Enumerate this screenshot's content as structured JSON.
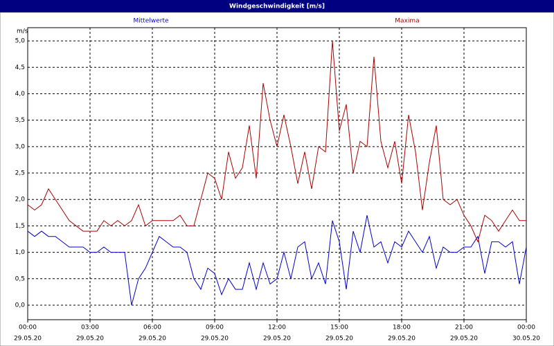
{
  "chart_data": {
    "type": "line",
    "title": "Windgeschwindigkeit [m/s]",
    "y_unit": "m/s",
    "x": [
      0,
      20,
      40,
      60,
      80,
      100,
      120,
      140,
      160,
      180,
      200,
      220,
      240,
      260,
      280,
      300,
      320,
      340,
      360,
      380,
      400,
      420,
      440,
      460,
      480,
      500,
      520,
      540,
      560,
      580,
      600,
      620,
      640,
      660,
      680,
      700,
      720,
      740,
      760,
      780,
      800,
      820,
      840,
      860,
      880,
      900,
      920,
      940,
      960,
      980,
      1000,
      1020,
      1040,
      1060,
      1080,
      1100,
      1120,
      1140,
      1160,
      1180,
      1200,
      1220,
      1240,
      1260,
      1280,
      1300,
      1320,
      1340,
      1360,
      1380,
      1400,
      1420,
      1440
    ],
    "series": [
      {
        "name": "Mittelwerte",
        "color": "#0000cc",
        "values": [
          1.4,
          1.3,
          1.4,
          1.3,
          1.3,
          1.2,
          1.1,
          1.1,
          1.1,
          1.0,
          1.0,
          1.1,
          1.0,
          1.0,
          1.0,
          0.0,
          0.5,
          0.7,
          1.0,
          1.3,
          1.2,
          1.1,
          1.1,
          1.0,
          0.5,
          0.3,
          0.7,
          0.6,
          0.2,
          0.5,
          0.3,
          0.3,
          0.8,
          0.3,
          0.8,
          0.4,
          0.5,
          1.0,
          0.5,
          1.1,
          1.2,
          0.5,
          0.8,
          0.4,
          1.6,
          1.2,
          0.3,
          1.4,
          1.0,
          1.7,
          1.1,
          1.2,
          0.8,
          1.2,
          1.1,
          1.4,
          1.2,
          1.0,
          1.3,
          0.7,
          1.1,
          1.0,
          1.0,
          1.1,
          1.1,
          1.3,
          0.6,
          1.2,
          1.2,
          1.1,
          1.2,
          0.4,
          1.1
        ]
      },
      {
        "name": "Maxima",
        "color": "#aa0000",
        "values": [
          1.9,
          1.8,
          1.9,
          2.2,
          2.0,
          1.8,
          1.6,
          1.5,
          1.4,
          1.4,
          1.4,
          1.6,
          1.5,
          1.6,
          1.5,
          1.6,
          1.9,
          1.5,
          1.6,
          1.6,
          1.6,
          1.6,
          1.7,
          1.5,
          1.5,
          2.0,
          2.5,
          2.4,
          2.0,
          2.9,
          2.4,
          2.6,
          3.4,
          2.4,
          4.2,
          3.5,
          3.0,
          3.6,
          3.0,
          2.3,
          2.9,
          2.2,
          3.0,
          2.9,
          5.0,
          3.3,
          3.8,
          2.5,
          3.1,
          3.0,
          4.7,
          3.1,
          2.6,
          3.1,
          2.3,
          3.6,
          2.9,
          1.8,
          2.7,
          3.4,
          2.0,
          1.9,
          2.0,
          1.7,
          1.5,
          1.2,
          1.7,
          1.6,
          1.4,
          1.6,
          1.8,
          1.6,
          1.6
        ]
      }
    ],
    "xlim": [
      0,
      1440
    ],
    "xticks": [
      {
        "value": 0,
        "label": [
          "00:00",
          "29.05.20"
        ]
      },
      {
        "value": 180,
        "label": [
          "03:00",
          "29.05.20"
        ]
      },
      {
        "value": 360,
        "label": [
          "06:00",
          "29.05.20"
        ]
      },
      {
        "value": 540,
        "label": [
          "09:00",
          "29.05.20"
        ]
      },
      {
        "value": 720,
        "label": [
          "12:00",
          "29.05.20"
        ]
      },
      {
        "value": 900,
        "label": [
          "15:00",
          "29.05.20"
        ]
      },
      {
        "value": 1080,
        "label": [
          "18:00",
          "29.05.20"
        ]
      },
      {
        "value": 1260,
        "label": [
          "21:00",
          "29.05.20"
        ]
      },
      {
        "value": 1440,
        "label": [
          "00:00",
          "30.05.20"
        ]
      }
    ],
    "ylim": [
      -0.275,
      5.25
    ],
    "yticks": [
      {
        "value": 0,
        "label": "0,0"
      },
      {
        "value": 0.5,
        "label": "0,5"
      },
      {
        "value": 1,
        "label": "1,0"
      },
      {
        "value": 1.5,
        "label": "1,5"
      },
      {
        "value": 2,
        "label": "2,0"
      },
      {
        "value": 2.5,
        "label": "2,5"
      },
      {
        "value": 3,
        "label": "3,0"
      },
      {
        "value": 3.5,
        "label": "3,5"
      },
      {
        "value": 4,
        "label": "4,0"
      },
      {
        "value": 4.5,
        "label": "4,5"
      },
      {
        "value": 5,
        "label": "5,0"
      }
    ],
    "grid": true
  }
}
